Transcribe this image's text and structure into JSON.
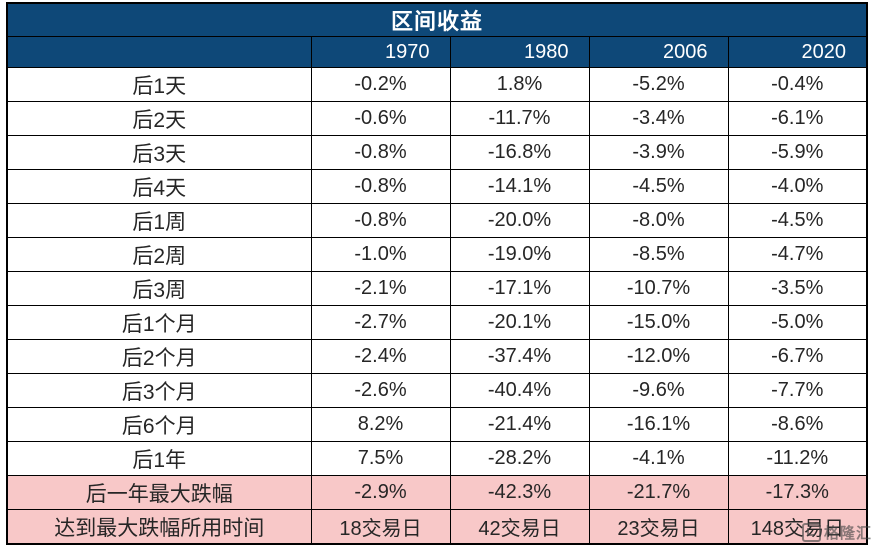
{
  "chart_data": {
    "type": "table",
    "title": "区间收益",
    "columns": [
      "1970",
      "1980",
      "2006",
      "2020"
    ],
    "rows": [
      {
        "label": "后1天",
        "values": [
          "-0.2%",
          "1.8%",
          "-5.2%",
          "-0.4%"
        ],
        "highlight": false
      },
      {
        "label": "后2天",
        "values": [
          "-0.6%",
          "-11.7%",
          "-3.4%",
          "-6.1%"
        ],
        "highlight": false
      },
      {
        "label": "后3天",
        "values": [
          "-0.8%",
          "-16.8%",
          "-3.9%",
          "-5.9%"
        ],
        "highlight": false
      },
      {
        "label": "后4天",
        "values": [
          "-0.8%",
          "-14.1%",
          "-4.5%",
          "-4.0%"
        ],
        "highlight": false
      },
      {
        "label": "后1周",
        "values": [
          "-0.8%",
          "-20.0%",
          "-8.0%",
          "-4.5%"
        ],
        "highlight": false
      },
      {
        "label": "后2周",
        "values": [
          "-1.0%",
          "-19.0%",
          "-8.5%",
          "-4.7%"
        ],
        "highlight": false
      },
      {
        "label": "后3周",
        "values": [
          "-2.1%",
          "-17.1%",
          "-10.7%",
          "-3.5%"
        ],
        "highlight": false
      },
      {
        "label": "后1个月",
        "values": [
          "-2.7%",
          "-20.1%",
          "-15.0%",
          "-5.0%"
        ],
        "highlight": false
      },
      {
        "label": "后2个月",
        "values": [
          "-2.4%",
          "-37.4%",
          "-12.0%",
          "-6.7%"
        ],
        "highlight": false
      },
      {
        "label": "后3个月",
        "values": [
          "-2.6%",
          "-40.4%",
          "-9.6%",
          "-7.7%"
        ],
        "highlight": false
      },
      {
        "label": "后6个月",
        "values": [
          "8.2%",
          "-21.4%",
          "-16.1%",
          "-8.6%"
        ],
        "highlight": false
      },
      {
        "label": "后1年",
        "values": [
          "7.5%",
          "-28.2%",
          "-4.1%",
          "-11.2%"
        ],
        "highlight": false
      },
      {
        "label": "后一年最大跌幅",
        "values": [
          "-2.9%",
          "-42.3%",
          "-21.7%",
          "-17.3%"
        ],
        "highlight": true
      },
      {
        "label": "达到最大跌幅所用时间",
        "values": [
          "18交易日",
          "42交易日",
          "23交易日",
          "148交易日"
        ],
        "highlight": true
      }
    ]
  },
  "watermark": {
    "text": "格隆汇",
    "icon": "gelonghui-logo"
  },
  "colors": {
    "header_bg": "#0E4878",
    "header_text": "#FFFFFF",
    "highlight_bg": "#F8C8C8",
    "body_text": "#262626",
    "border": "#000000"
  }
}
